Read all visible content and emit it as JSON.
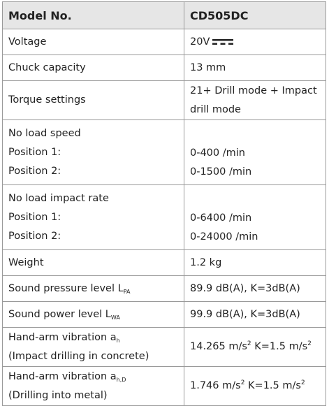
{
  "table": {
    "header": [
      "Model No.",
      "CD505DC"
    ],
    "rows": [
      {
        "label": [
          "Voltage"
        ],
        "value": [
          "20V"
        ]
      },
      {
        "label": [
          "Chuck capacity"
        ],
        "value": [
          "13 mm"
        ]
      },
      {
        "label": [
          "Torque settings"
        ],
        "value": [
          "21+ Drill mode + Impact",
          "drill mode"
        ]
      },
      {
        "label": [
          "No load speed",
          "Position 1:",
          "Position 2:"
        ],
        "value": [
          "0-400 /min",
          "0-1500 /min"
        ]
      },
      {
        "label": [
          "No load impact rate",
          "Position 1:",
          "Position 2:"
        ],
        "value": [
          "0-6400 /min",
          "0-24000 /min"
        ]
      },
      {
        "label": [
          "Weight"
        ],
        "value": [
          "1.2 kg"
        ]
      },
      {
        "label": [
          {
            "text": "Sound pressure level L",
            "sub": "PA"
          }
        ],
        "value": [
          "89.9 dB(A), K=3dB(A)"
        ]
      },
      {
        "label": [
          {
            "text": "Sound power level L",
            "sub": "WA"
          }
        ],
        "value": [
          "99.9 dB(A), K=3dB(A)"
        ]
      },
      {
        "label": [
          {
            "text": "Hand-arm vibration a",
            "sub": "h"
          },
          "(Impact drilling in concrete)"
        ],
        "value": [
          {
            "a": "14.265 m/s",
            "a_sup": "2",
            "b": " K=1.5 m/s",
            "b_sup": "2"
          }
        ]
      },
      {
        "label": [
          {
            "text": "Hand-arm vibration a",
            "sub": "h,D"
          },
          "(Drilling into metal)"
        ],
        "value": [
          {
            "a": "1.746 m/s",
            "a_sup": "2",
            "b": " K=1.5 m/s",
            "b_sup": "2"
          }
        ]
      }
    ]
  }
}
